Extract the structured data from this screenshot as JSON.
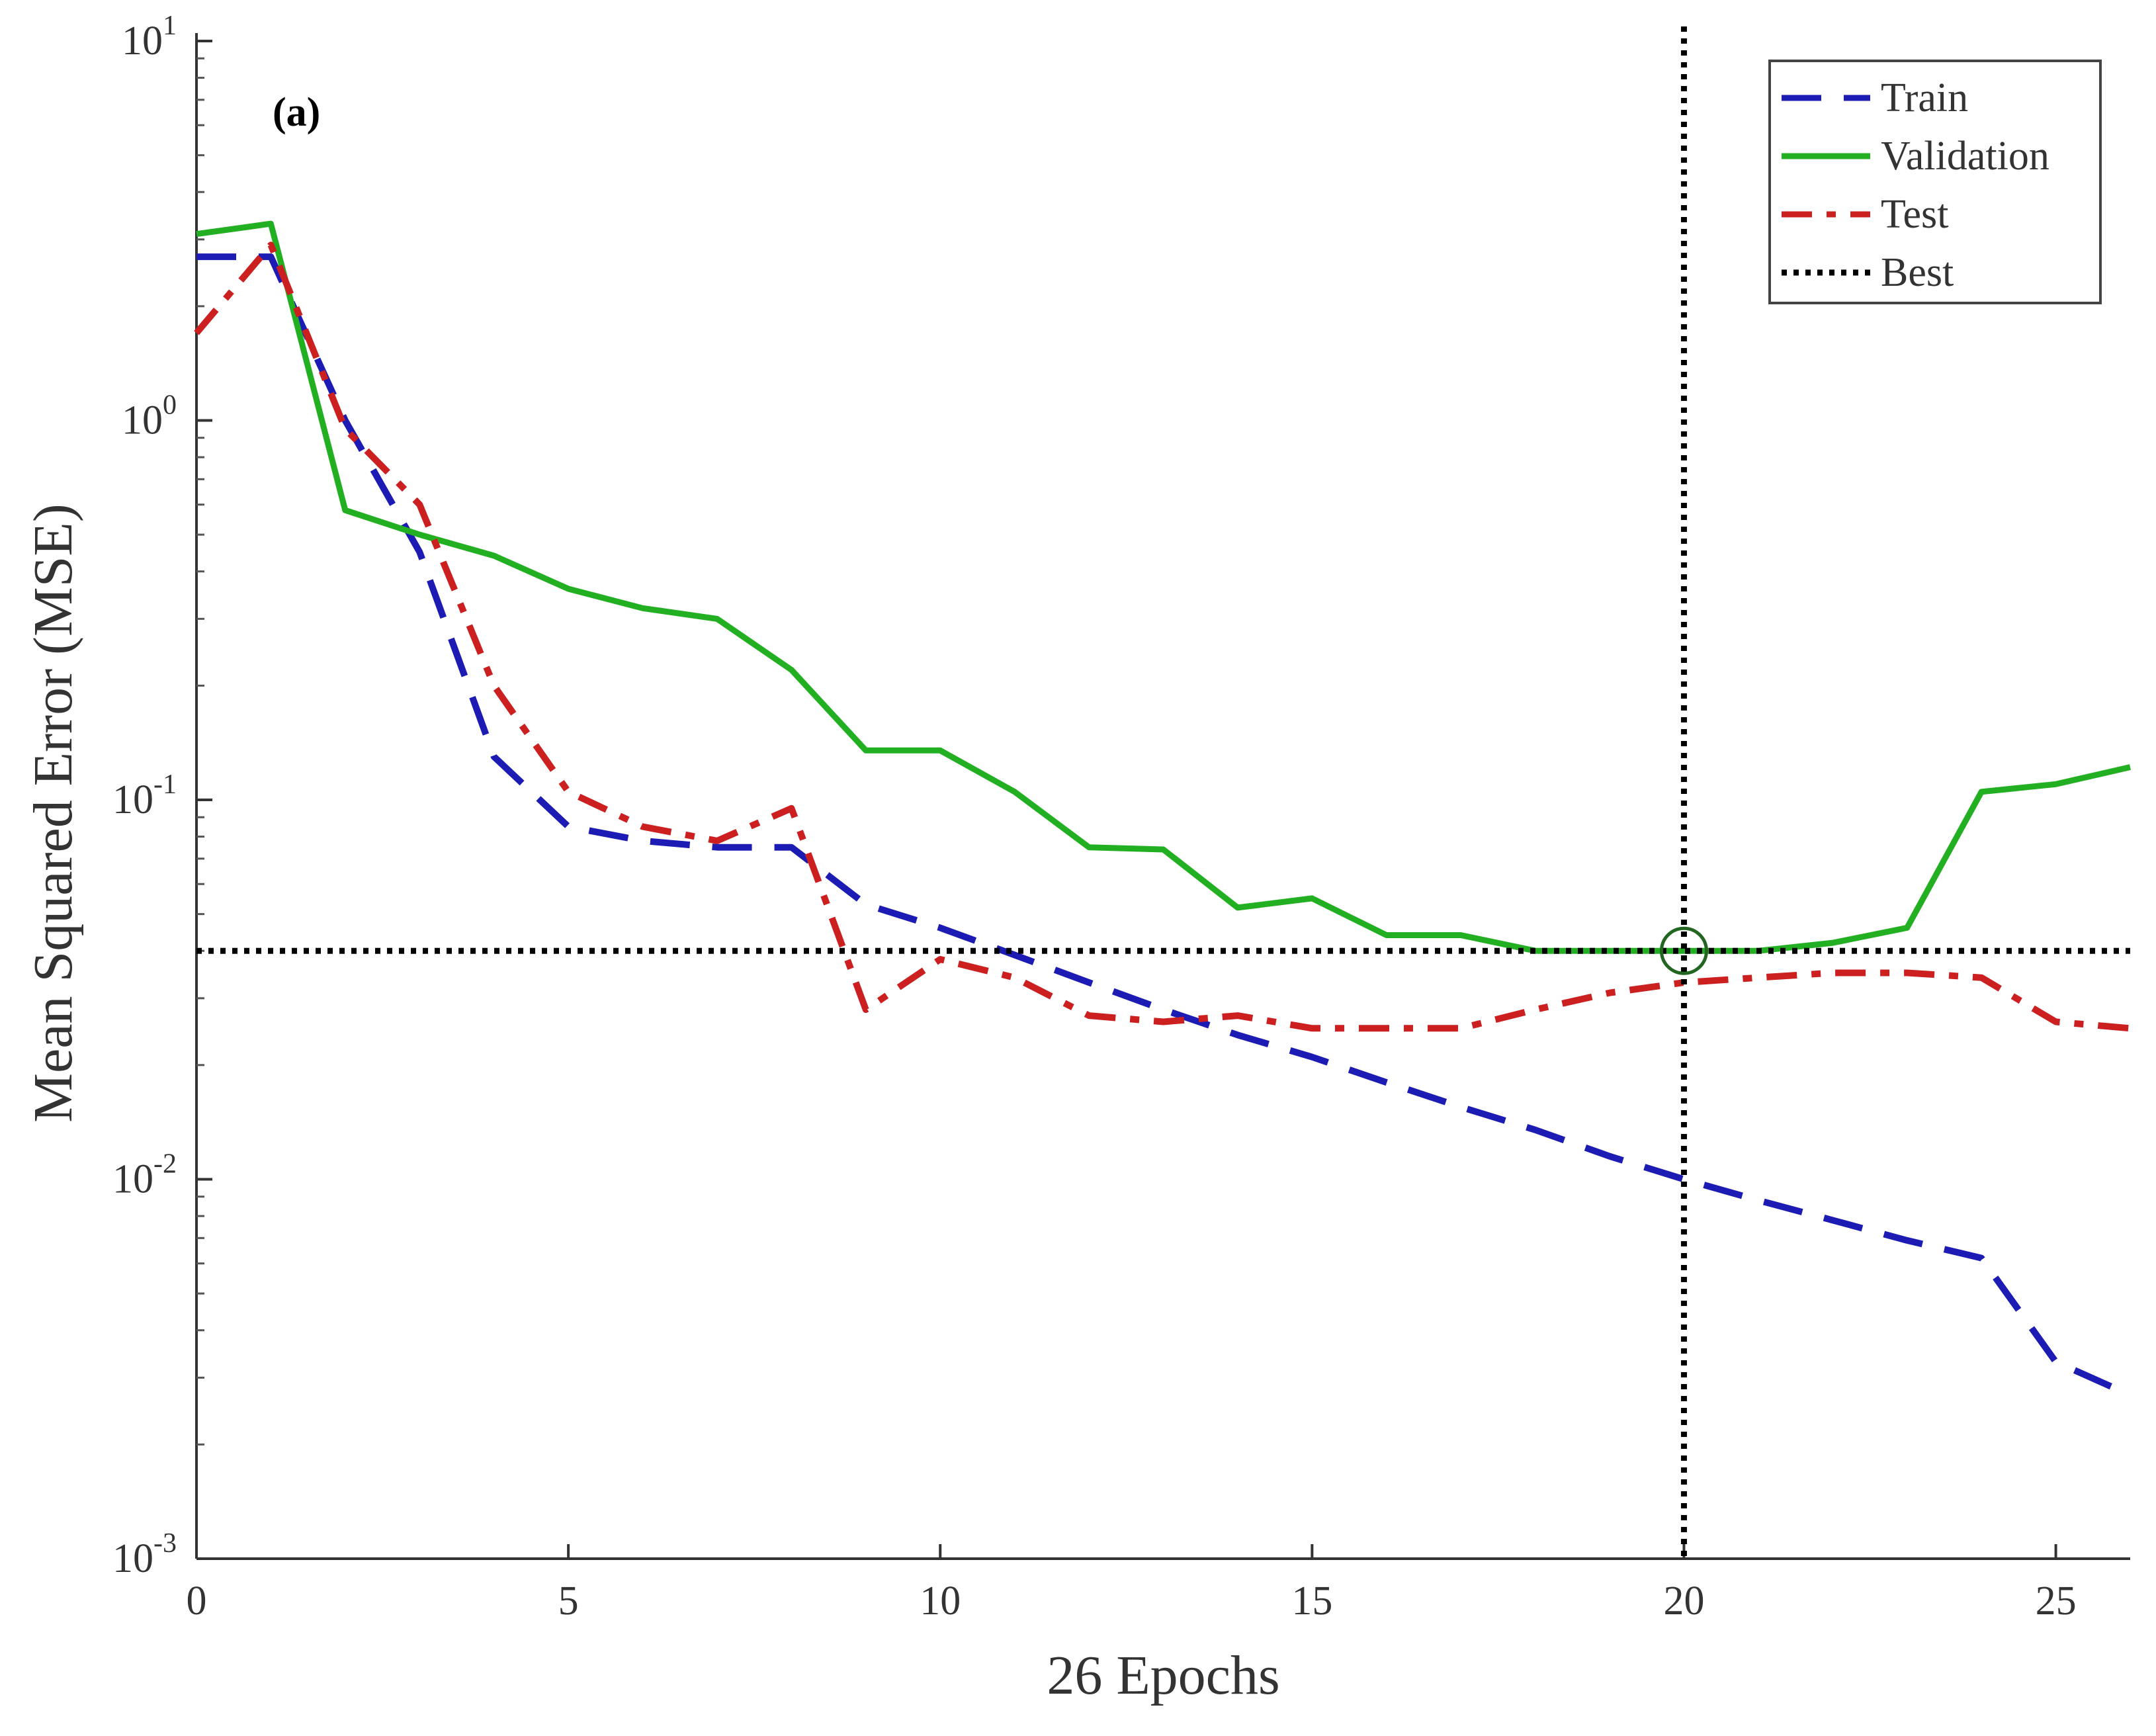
{
  "chart_data": {
    "type": "line",
    "panel_label": "(a)",
    "xlabel": "26 Epochs",
    "ylabel": "Mean Squared Error  (MSE)",
    "xlim": [
      0,
      26
    ],
    "ylim": [
      0.001,
      10
    ],
    "yscale": "log",
    "grid": false,
    "legend_position": "top-right",
    "x_ticks": [
      0,
      5,
      10,
      15,
      20,
      25
    ],
    "x_tick_labels": [
      "0",
      "5",
      "10",
      "15",
      "20",
      "25"
    ],
    "y_ticks": [
      0.001,
      0.01,
      0.1,
      1,
      10
    ],
    "y_tick_labels": [
      {
        "base": "10",
        "exp": "-3"
      },
      {
        "base": "10",
        "exp": "-2"
      },
      {
        "base": "10",
        "exp": "-1"
      },
      {
        "base": "10",
        "exp": "0"
      },
      {
        "base": "10",
        "exp": "1"
      }
    ],
    "x": [
      0,
      1,
      2,
      3,
      4,
      5,
      6,
      7,
      8,
      9,
      10,
      11,
      12,
      13,
      14,
      15,
      16,
      17,
      18,
      19,
      20,
      21,
      22,
      23,
      24,
      25,
      26
    ],
    "series": [
      {
        "name": "Train",
        "color": "#1c1cb4",
        "style": "dashed",
        "values": [
          2.7,
          2.7,
          1.0,
          0.45,
          0.13,
          0.085,
          0.078,
          0.075,
          0.075,
          0.053,
          0.046,
          0.039,
          0.033,
          0.028,
          0.024,
          0.021,
          0.018,
          0.0155,
          0.0135,
          0.0115,
          0.01,
          0.0088,
          0.0078,
          0.0069,
          0.0062,
          0.0033,
          0.0027
        ]
      },
      {
        "name": "Validation",
        "color": "#22b022",
        "style": "solid",
        "values": [
          3.1,
          3.3,
          0.58,
          0.5,
          0.44,
          0.36,
          0.32,
          0.3,
          0.22,
          0.135,
          0.135,
          0.105,
          0.075,
          0.074,
          0.052,
          0.055,
          0.044,
          0.044,
          0.04,
          0.04,
          0.04,
          0.04,
          0.042,
          0.046,
          0.105,
          0.11,
          0.122
        ]
      },
      {
        "name": "Test",
        "color": "#cc2020",
        "style": "dashdot",
        "values": [
          1.7,
          2.9,
          0.95,
          0.6,
          0.2,
          0.105,
          0.085,
          0.078,
          0.095,
          0.028,
          0.038,
          0.034,
          0.027,
          0.026,
          0.027,
          0.025,
          0.025,
          0.025,
          0.028,
          0.031,
          0.033,
          0.034,
          0.035,
          0.035,
          0.034,
          0.026,
          0.025
        ]
      }
    ],
    "best": {
      "name": "Best",
      "epoch": 20,
      "value": 0.04,
      "color": "#000000",
      "style": "dotted"
    }
  }
}
